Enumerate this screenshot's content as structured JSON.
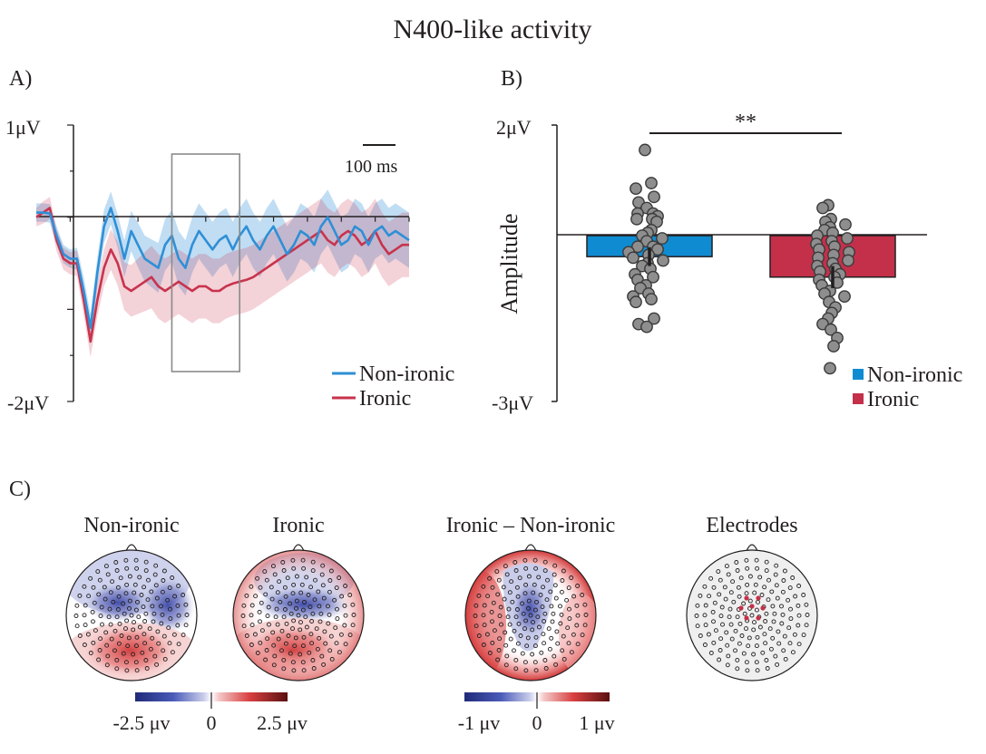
{
  "title": "N400-like activity",
  "colors": {
    "non_ironic": "#2f8fd6",
    "ironic": "#c8334d",
    "non_ironic_bar": "#0f8cd1",
    "ironic_bar": "#c4304a",
    "dot": "#8e8e8e",
    "neg": "#3d48a8",
    "pos": "#d23a3a"
  },
  "panels": {
    "a": {
      "label": "A)",
      "ytick_top": "1μV",
      "ytick_bottom": "-2μV",
      "scale_bar_label": "100 ms",
      "legend": [
        "Non-ironic",
        "Ironic"
      ]
    },
    "b": {
      "label": "B)",
      "ytick_top": "2μV",
      "ytick_bottom": "-3μV",
      "ylabel": "Amplitude",
      "significance": "**",
      "legend": [
        "Non-ironic",
        "Ironic"
      ]
    },
    "c": {
      "label": "C)",
      "map_titles": [
        "Non-ironic",
        "Ironic",
        "Ironic – Non-ironic",
        "Electrodes"
      ],
      "colorbar1": [
        "-2.5 μv",
        "0",
        "2.5 μv"
      ],
      "colorbar2": [
        "-1 μv",
        "0",
        "1 μv"
      ]
    }
  },
  "chart_data": [
    {
      "type": "line",
      "panel": "A",
      "units": "μV",
      "ylim": [
        -2,
        1
      ],
      "x_ms": [
        -100,
        -80,
        -60,
        -40,
        -20,
        0,
        20,
        40,
        60,
        80,
        100,
        120,
        140,
        160,
        180,
        200,
        220,
        240,
        260,
        280,
        300,
        320,
        340,
        360,
        380,
        400,
        420,
        440,
        460,
        480,
        500,
        520,
        540,
        560,
        580,
        600,
        620,
        640,
        660,
        680,
        700,
        720,
        740,
        760,
        780,
        800,
        820,
        840,
        860,
        880,
        900,
        920,
        940,
        960,
        980,
        1000
      ],
      "analysis_window_ms": [
        300,
        500
      ],
      "series": [
        {
          "name": "Non-ironic",
          "values": [
            0.05,
            0.05,
            0.04,
            -0.2,
            -0.4,
            -0.45,
            -0.45,
            -0.8,
            -1.2,
            -0.6,
            -0.1,
            0.1,
            -0.15,
            -0.45,
            -0.15,
            -0.3,
            -0.45,
            -0.5,
            -0.55,
            -0.3,
            -0.2,
            -0.45,
            -0.55,
            -0.3,
            -0.15,
            -0.25,
            -0.35,
            -0.25,
            -0.2,
            -0.35,
            -0.2,
            -0.1,
            -0.25,
            -0.35,
            -0.2,
            -0.1,
            -0.25,
            -0.4,
            -0.3,
            -0.15,
            -0.2,
            -0.3,
            -0.1,
            0.0,
            -0.15,
            -0.3,
            -0.25,
            -0.1,
            -0.15,
            -0.3,
            -0.15,
            -0.1,
            -0.2,
            -0.15,
            -0.2,
            -0.25
          ],
          "sem": [
            0.1,
            0.1,
            0.1,
            0.1,
            0.1,
            0.1,
            0.12,
            0.15,
            0.15,
            0.16,
            0.18,
            0.18,
            0.18,
            0.2,
            0.22,
            0.24,
            0.25,
            0.26,
            0.27,
            0.28,
            0.28,
            0.3,
            0.3,
            0.3,
            0.3,
            0.3,
            0.3,
            0.3,
            0.3,
            0.3,
            0.3,
            0.3,
            0.3,
            0.3,
            0.3,
            0.3,
            0.3,
            0.3,
            0.3,
            0.3,
            0.3,
            0.3,
            0.3,
            0.3,
            0.3,
            0.3,
            0.3,
            0.3,
            0.3,
            0.3,
            0.3,
            0.3,
            0.3,
            0.3,
            0.3,
            0.3
          ]
        },
        {
          "name": "Ironic",
          "values": [
            0.0,
            0.05,
            0.1,
            -0.25,
            -0.45,
            -0.5,
            -0.5,
            -0.9,
            -1.35,
            -0.9,
            -0.55,
            -0.35,
            -0.5,
            -0.75,
            -0.8,
            -0.75,
            -0.7,
            -0.65,
            -0.75,
            -0.8,
            -0.75,
            -0.7,
            -0.75,
            -0.8,
            -0.75,
            -0.75,
            -0.8,
            -0.8,
            -0.75,
            -0.72,
            -0.7,
            -0.68,
            -0.65,
            -0.6,
            -0.55,
            -0.5,
            -0.45,
            -0.4,
            -0.35,
            -0.3,
            -0.25,
            -0.2,
            -0.15,
            -0.25,
            -0.3,
            -0.2,
            -0.15,
            -0.2,
            -0.3,
            -0.25,
            -0.15,
            -0.3,
            -0.4,
            -0.35,
            -0.3,
            -0.3
          ],
          "sem": [
            0.1,
            0.12,
            0.12,
            0.12,
            0.12,
            0.12,
            0.14,
            0.16,
            0.17,
            0.18,
            0.2,
            0.22,
            0.24,
            0.26,
            0.28,
            0.3,
            0.32,
            0.34,
            0.35,
            0.35,
            0.35,
            0.35,
            0.35,
            0.35,
            0.35,
            0.35,
            0.35,
            0.35,
            0.35,
            0.35,
            0.35,
            0.35,
            0.35,
            0.35,
            0.35,
            0.35,
            0.35,
            0.35,
            0.35,
            0.35,
            0.35,
            0.35,
            0.35,
            0.35,
            0.35,
            0.35,
            0.35,
            0.35,
            0.35,
            0.35,
            0.35,
            0.35,
            0.35,
            0.35,
            0.35,
            0.35
          ]
        }
      ]
    },
    {
      "type": "bar",
      "panel": "B",
      "units": "μV",
      "ylim": [
        -3,
        2
      ],
      "categories": [
        "Non-ironic",
        "Ironic"
      ],
      "values": [
        -0.38,
        -0.75
      ],
      "error": [
        0.17,
        0.2
      ],
      "individual_points": [
        [
          1.55,
          0.95,
          0.85,
          0.7,
          0.6,
          0.5,
          0.4,
          0.4,
          0.35,
          0.3,
          0.3,
          0.25,
          0.1,
          0.05,
          0.0,
          -0.05,
          -0.1,
          -0.2,
          -0.2,
          -0.25,
          -0.3,
          -0.35,
          -0.4,
          -0.45,
          -0.5,
          -0.55,
          -0.6,
          -0.7,
          -0.75,
          -0.8,
          -0.9,
          -0.95,
          -1.05,
          -1.1,
          -1.15,
          -1.2,
          -1.5,
          -1.6,
          -1.65
        ],
        [
          0.55,
          0.5,
          0.3,
          0.25,
          0.2,
          0.15,
          0.1,
          0.05,
          0.0,
          -0.05,
          -0.1,
          -0.15,
          -0.2,
          -0.25,
          -0.3,
          -0.35,
          -0.4,
          -0.45,
          -0.5,
          -0.55,
          -0.6,
          -0.65,
          -0.7,
          -0.75,
          -0.8,
          -0.85,
          -0.9,
          -1.0,
          -1.05,
          -1.1,
          -1.2,
          -1.3,
          -1.4,
          -1.5,
          -1.6,
          -1.7,
          -1.85,
          -2.0,
          -2.4
        ]
      ]
    }
  ]
}
